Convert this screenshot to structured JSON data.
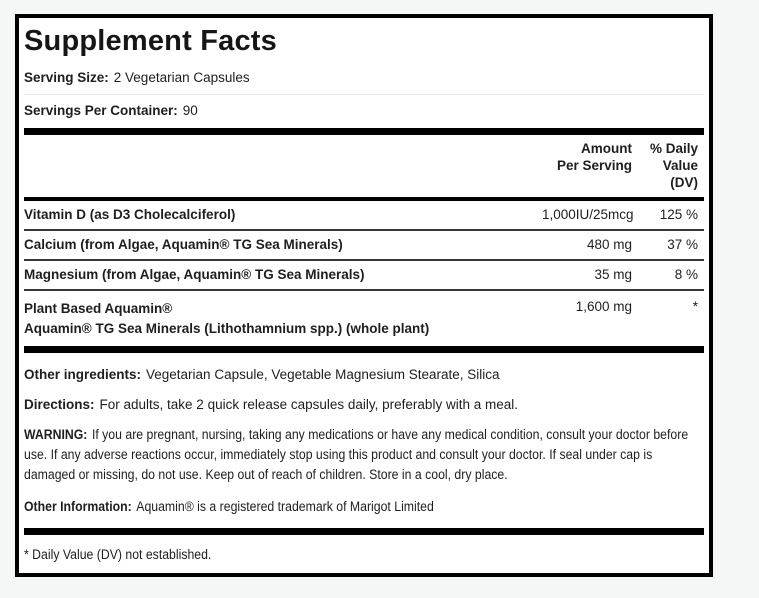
{
  "label": {
    "title": "Supplement Facts",
    "serving": {
      "size_label": "Serving Size:",
      "size_value": "2 Vegetarian Capsules",
      "per_container_label": "Servings Per Container:",
      "per_container_value": "90"
    },
    "table": {
      "amount_header": "Amount\nPer Serving",
      "dv_header": "% Daily\nValue\n(DV)",
      "rows": [
        {
          "name": "Vitamin D (as D3 Cholecalciferol)",
          "amount": "1,000IU/25mcg",
          "dv": "125 %"
        },
        {
          "name": "Calcium (from Algae, Aquamin® TG Sea Minerals)",
          "amount": "480 mg",
          "dv": "37 %"
        },
        {
          "name": "Magnesium (from Algae, Aquamin® TG Sea Minerals)",
          "amount": "35 mg",
          "dv": "8 %"
        },
        {
          "name": "Plant Based Aquamin®",
          "name_line2": "Aquamin® TG Sea Minerals (Lithothamnium spp.) (whole plant)",
          "amount": "1,600 mg",
          "dv": "*"
        }
      ]
    },
    "other_ingredients": {
      "label": "Other ingredients:",
      "text": "Vegetarian Capsule, Vegetable Magnesium Stearate, Silica"
    },
    "directions": {
      "label": "Directions:",
      "text": "For adults, take 2 quick release capsules daily, preferably with a meal."
    },
    "warning": {
      "label": "WARNING:",
      "text": "If you are pregnant, nursing, taking any medications or have any medical condition, consult your doctor before use. If any adverse reactions occur, immediately stop using this product and consult your doctor. If seal under cap is damaged or missing, do not use. Keep out of reach of children. Store in a cool, dry place."
    },
    "other_information": {
      "label": "Other Information:",
      "text": "Aquamin® is a registered trademark of Marigot Limited"
    },
    "footnote": "* Daily Value (DV) not established."
  },
  "colors": {
    "page_background": "#f5f6f6",
    "label_background": "#ffffff",
    "border_and_rules": "#000000",
    "text": "#1e1e1e"
  }
}
